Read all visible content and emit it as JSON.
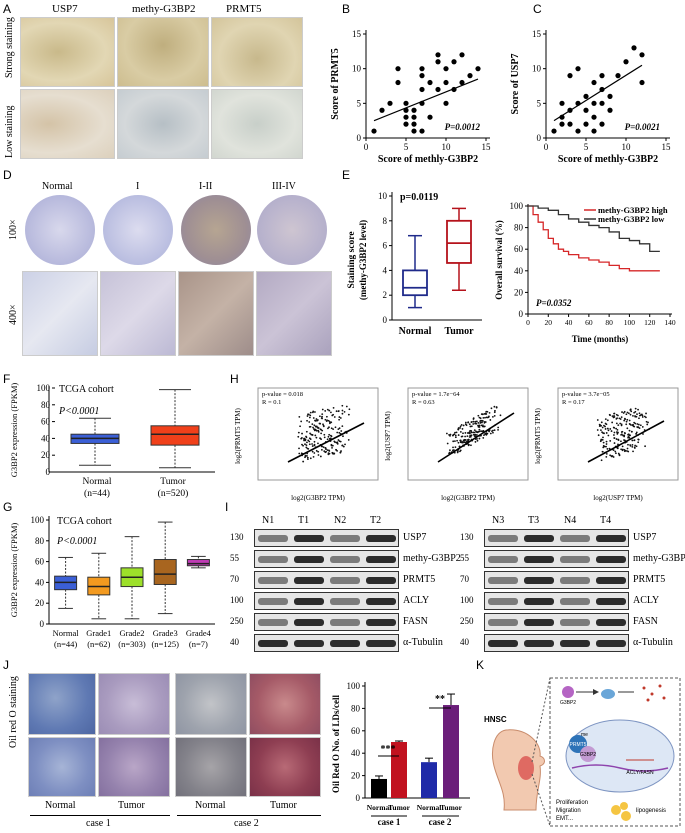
{
  "panelA": {
    "label": "A",
    "cols": [
      "USP7",
      "methy-G3BP2",
      "PRMT5"
    ],
    "rows": [
      "Strong staining",
      "Low staining"
    ]
  },
  "panelB": {
    "label": "B",
    "ylabel": "Score of PRMT5",
    "xlabel": "Score of methly-G3BP2",
    "p": "P=0.0012",
    "chart_data": {
      "type": "scatter",
      "xlim": [
        0,
        15
      ],
      "ylim": [
        0,
        15
      ],
      "xticks": [
        "0",
        "5",
        "10",
        "15"
      ],
      "yticks": [
        "0",
        "5",
        "10",
        "15"
      ],
      "points": [
        [
          1,
          1
        ],
        [
          2,
          4
        ],
        [
          3,
          5
        ],
        [
          4,
          10
        ],
        [
          4,
          8
        ],
        [
          5,
          5
        ],
        [
          5,
          4
        ],
        [
          5,
          3
        ],
        [
          5,
          2
        ],
        [
          6,
          2
        ],
        [
          6,
          3
        ],
        [
          6,
          1
        ],
        [
          6,
          4
        ],
        [
          7,
          1
        ],
        [
          7,
          5
        ],
        [
          7,
          7
        ],
        [
          7,
          9
        ],
        [
          7,
          10
        ],
        [
          8,
          8
        ],
        [
          8,
          3
        ],
        [
          9,
          7
        ],
        [
          9,
          11
        ],
        [
          9,
          12
        ],
        [
          10,
          8
        ],
        [
          10,
          5
        ],
        [
          10,
          10
        ],
        [
          11,
          11
        ],
        [
          11,
          7
        ],
        [
          12,
          8
        ],
        [
          12,
          12
        ],
        [
          13,
          9
        ],
        [
          14,
          10
        ]
      ],
      "fit": [
        [
          1,
          2.5
        ],
        [
          14,
          8.5
        ]
      ]
    }
  },
  "panelC": {
    "label": "C",
    "ylabel": "Score of USP7",
    "xlabel": "Score of methly-G3BP2",
    "p": "P=0.0021",
    "chart_data": {
      "type": "scatter",
      "xlim": [
        0,
        15
      ],
      "ylim": [
        0,
        15
      ],
      "xticks": [
        "0",
        "5",
        "10",
        "15"
      ],
      "yticks": [
        "0",
        "5",
        "10",
        "15"
      ],
      "points": [
        [
          1,
          1
        ],
        [
          2,
          5
        ],
        [
          2,
          3
        ],
        [
          2,
          2
        ],
        [
          3,
          4
        ],
        [
          3,
          9
        ],
        [
          3,
          2
        ],
        [
          4,
          5
        ],
        [
          4,
          1
        ],
        [
          4,
          10
        ],
        [
          5,
          6
        ],
        [
          5,
          4
        ],
        [
          5,
          2
        ],
        [
          6,
          5
        ],
        [
          6,
          3
        ],
        [
          6,
          8
        ],
        [
          6,
          1
        ],
        [
          7,
          7
        ],
        [
          7,
          5
        ],
        [
          7,
          2
        ],
        [
          7,
          9
        ],
        [
          8,
          4
        ],
        [
          8,
          6
        ],
        [
          9,
          9
        ],
        [
          10,
          11
        ],
        [
          11,
          13
        ],
        [
          12,
          12
        ],
        [
          12,
          8
        ]
      ],
      "fit": [
        [
          1,
          2.5
        ],
        [
          12,
          10.5
        ]
      ]
    }
  },
  "panelD": {
    "label": "D",
    "cols": [
      "Normal",
      "I",
      "I-II",
      "III-IV"
    ],
    "rows": [
      "100×",
      "400×"
    ]
  },
  "panelE": {
    "label": "E",
    "box": {
      "ylabel1": "Staining score",
      "ylabel2": "(methy-G3BP2 level)",
      "p": "p=0.0119",
      "cats": [
        "Normal",
        "Tumor"
      ],
      "chart_data": {
        "type": "box",
        "ylim": [
          0,
          10
        ],
        "yticks": [
          "0",
          "2",
          "4",
          "6",
          "8",
          "10"
        ],
        "series": [
          {
            "name": "Normal",
            "min": 1,
            "q1": 2,
            "med": 2.6,
            "q3": 4,
            "max": 6.8
          },
          {
            "name": "Tumor",
            "min": 2.4,
            "q1": 4.6,
            "med": 6.2,
            "q3": 8,
            "max": 9
          }
        ]
      }
    },
    "km": {
      "ylabel": "Overall survival (%)",
      "xlabel": "Time (months)",
      "p": "P=0.0352",
      "legend": [
        "methy-G3BP2 high",
        "methy-G3BP2 low"
      ],
      "chart_data": {
        "type": "line",
        "xlim": [
          0,
          140
        ],
        "ylim": [
          0,
          100
        ],
        "xticks": [
          "0",
          "20",
          "40",
          "60",
          "80",
          "100",
          "120",
          "140"
        ],
        "yticks": [
          "0",
          "20",
          "40",
          "60",
          "80",
          "100"
        ],
        "series": [
          {
            "name": "methy-G3BP2 high",
            "color": "#d62728",
            "x": [
              0,
              5,
              10,
              15,
              20,
              25,
              30,
              35,
              40,
              50,
              60,
              70,
              80,
              90,
              100,
              110,
              130
            ],
            "y": [
              100,
              92,
              85,
              78,
              70,
              65,
              60,
              58,
              55,
              52,
              50,
              48,
              45,
              42,
              40,
              40,
              40
            ]
          },
          {
            "name": "methy-G3BP2 low",
            "color": "#333333",
            "x": [
              0,
              10,
              20,
              30,
              40,
              50,
              60,
              70,
              80,
              90,
              100,
              110,
              120,
              130
            ],
            "y": [
              100,
              98,
              96,
              92,
              88,
              85,
              82,
              80,
              76,
              70,
              68,
              65,
              58,
              58
            ]
          }
        ]
      }
    }
  },
  "panelF": {
    "label": "F",
    "title": "TCGA cohort",
    "p": "P<0.0001",
    "ylabel": "G3BP2 expression (FPKM)",
    "cats": [
      "Normal",
      "Tumor"
    ],
    "ns": [
      "(n=44)",
      "(n=520)"
    ],
    "chart_data": {
      "type": "box",
      "ylim": [
        0,
        100
      ],
      "yticks": [
        "0",
        "20",
        "40",
        "60",
        "80",
        "100"
      ],
      "series": [
        {
          "name": "Normal",
          "color": "#3b5fd6",
          "min": 8,
          "q1": 34,
          "med": 40,
          "q3": 45,
          "max": 64
        },
        {
          "name": "Tumor",
          "color": "#f0401a",
          "min": 5,
          "q1": 32,
          "med": 45,
          "q3": 55,
          "max": 98
        }
      ]
    }
  },
  "panelG": {
    "label": "G",
    "title": "TCGA cohort",
    "p": "P<0.0001",
    "ylabel": "G3BP2 expression (FPKM)",
    "cats": [
      "Normal",
      "Grade1",
      "Grade2",
      "Grade3",
      "Grade4"
    ],
    "ns": [
      "(n=44)",
      "(n=62)",
      "(n=303)",
      "(n=125)",
      "(n=7)"
    ],
    "chart_data": {
      "type": "box",
      "ylim": [
        0,
        100
      ],
      "yticks": [
        "0",
        "20",
        "40",
        "60",
        "80",
        "100"
      ],
      "series": [
        {
          "name": "Normal",
          "color": "#3b5fd6",
          "min": 15,
          "q1": 33,
          "med": 40,
          "q3": 46,
          "max": 64
        },
        {
          "name": "Grade1",
          "color": "#f39a1f",
          "min": 5,
          "q1": 28,
          "med": 36,
          "q3": 45,
          "max": 68
        },
        {
          "name": "Grade2",
          "color": "#9de02a",
          "min": 5,
          "q1": 36,
          "med": 45,
          "q3": 54,
          "max": 84
        },
        {
          "name": "Grade3",
          "color": "#a8651f",
          "min": 10,
          "q1": 38,
          "med": 48,
          "q3": 62,
          "max": 98
        },
        {
          "name": "Grade4",
          "color": "#c03bb5",
          "min": 54,
          "q1": 56,
          "med": 58,
          "q3": 62,
          "max": 65
        }
      ]
    }
  },
  "panelH": {
    "label": "H",
    "plots": [
      {
        "stat1": "p-value = 0.018",
        "stat2": "R = 0.1",
        "ylabel": "log2(PRMT5 TPM)",
        "xlabel": "log2(G3BP2 TPM)"
      },
      {
        "stat1": "p-value = 1.7e−64",
        "stat2": "R = 0.63",
        "ylabel": "log2(USP7 TPM)",
        "xlabel": "log2(G3BP2 TPM)"
      },
      {
        "stat1": "p-value = 3.7e−05",
        "stat2": "R = 0.17",
        "ylabel": "log2(PRMT5 TPM)",
        "xlabel": "log2(USP7 TPM)"
      }
    ]
  },
  "panelI": {
    "label": "I",
    "left": {
      "lanes": [
        "N1",
        "T1",
        "N2",
        "T2"
      ]
    },
    "right": {
      "lanes": [
        "N3",
        "T3",
        "N4",
        "T4"
      ]
    },
    "proteins": [
      "USP7",
      "methy-G3BP2",
      "PRMT5",
      "ACLY",
      "FASN",
      "α-Tubulin"
    ],
    "markers": [
      "130",
      "55",
      "70",
      "100",
      "250",
      "40"
    ]
  },
  "panelJ": {
    "label": "J",
    "side": "Oil red O staining",
    "lower": [
      "Normal",
      "Tumor",
      "Normal",
      "Tumor"
    ],
    "cases": [
      "case 1",
      "case 2"
    ],
    "bar": {
      "ylabel": "Oil Red O No. of LDs/cell",
      "sig1": "***",
      "sig2": "**",
      "cats": [
        "Normal",
        "Tumor",
        "Normal",
        "Tumor"
      ],
      "cases": [
        "case 1",
        "case 2"
      ],
      "chart_data": {
        "type": "bar",
        "ylim": [
          0,
          100
        ],
        "yticks": [
          "0",
          "20",
          "40",
          "60",
          "80",
          "100"
        ],
        "categories": [
          "Normal",
          "Tumor",
          "Normal",
          "Tumor"
        ],
        "values": [
          17,
          50,
          32,
          83
        ],
        "colors": [
          "#000000",
          "#c1121f",
          "#1f2aa8",
          "#6b1e7a"
        ]
      }
    }
  },
  "panelK": {
    "label": "K",
    "hnsc": "HNSC",
    "g3bp2": "G3BP2",
    "prmt5": "PRMT5",
    "me": "me",
    "acly": "ACLY/FASN",
    "out1": "Proliferation",
    "out2": "Migration",
    "out3": "EMT...",
    "out4": "lipogenesis"
  }
}
